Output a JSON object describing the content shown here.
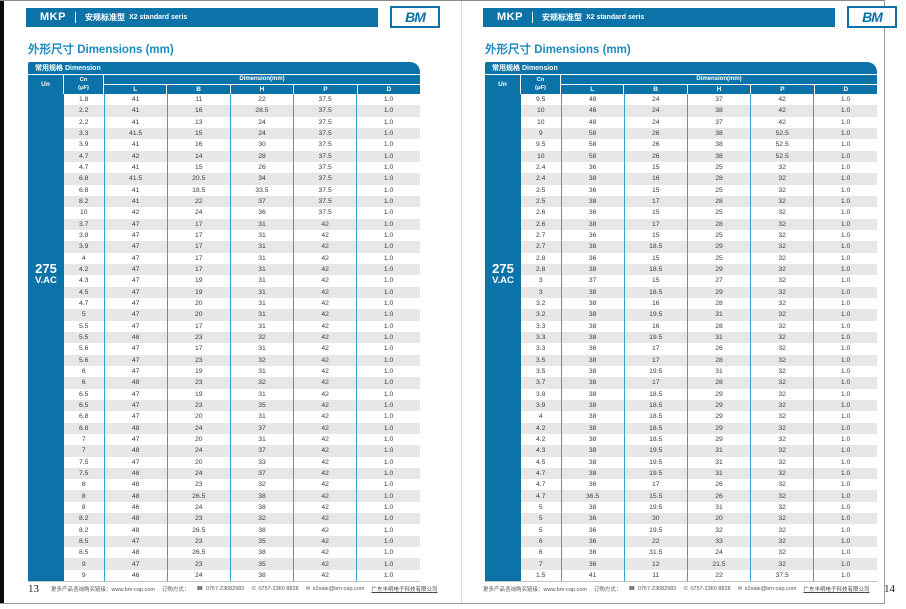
{
  "page": {
    "footer": {
      "promo": "更多产品咨询购买链接：www.bm-cap.com",
      "order_label": "订购方式：",
      "phone": "0757-23682982",
      "fax": "0757-2360 8828",
      "email": "x2sale@bm-cap.com",
      "company": "广东丰明电子科技有限公司"
    }
  },
  "colors": {
    "brand_blue": "#0C73A8",
    "grid_blue": "#33A3D4",
    "stripe_gray": "#E7E7E7",
    "title_blue": "#1B8AC0"
  },
  "panels": [
    {
      "page_number": "13",
      "logo_text": "BM",
      "header": {
        "series": "MKP",
        "subtitle_cn": "安规标准型",
        "subtitle_en": "X2 standard seris"
      },
      "title": "外形尺寸 Dimensions (mm)",
      "table": {
        "caption": "常用规格 Dimension",
        "col_un": "Un",
        "col_cn": "Cn",
        "col_cn_unit": "(μF)",
        "dim_group": "Dimension(mm)",
        "dim_cols": [
          "L",
          "B",
          "H",
          "P",
          "D"
        ],
        "voltage": {
          "value": "275",
          "unit": "V.AC"
        },
        "rows": [
          [
            "1.8",
            "41",
            "11",
            "22",
            "37.5",
            "1.0"
          ],
          [
            "2.2",
            "41",
            "16",
            "28.5",
            "37.5",
            "1.0"
          ],
          [
            "2.2",
            "41",
            "13",
            "24",
            "37.5",
            "1.0"
          ],
          [
            "3.3",
            "41.5",
            "15",
            "24",
            "37.5",
            "1.0"
          ],
          [
            "3.9",
            "41",
            "16",
            "30",
            "37.5",
            "1.0"
          ],
          [
            "4.7",
            "42",
            "14",
            "28",
            "37.5",
            "1.0"
          ],
          [
            "4.7",
            "41",
            "15",
            "26",
            "37.5",
            "1.0"
          ],
          [
            "6.8",
            "41.5",
            "20.5",
            "34",
            "37.5",
            "1.0"
          ],
          [
            "6.8",
            "41",
            "18.5",
            "33.5",
            "37.5",
            "1.0"
          ],
          [
            "8.2",
            "41",
            "22",
            "37",
            "37.5",
            "1.0"
          ],
          [
            "10",
            "42",
            "24",
            "36",
            "37.5",
            "1.0"
          ],
          [
            "3.7",
            "47",
            "17",
            "31",
            "42",
            "1.0"
          ],
          [
            "3.8",
            "47",
            "17",
            "31",
            "42",
            "1.0"
          ],
          [
            "3.9",
            "47",
            "17",
            "31",
            "42",
            "1.0"
          ],
          [
            "4",
            "47",
            "17",
            "31",
            "42",
            "1.0"
          ],
          [
            "4.2",
            "47",
            "17",
            "31",
            "42",
            "1.0"
          ],
          [
            "4.3",
            "47",
            "19",
            "31",
            "42",
            "1.0"
          ],
          [
            "4.5",
            "47",
            "19",
            "31",
            "42",
            "1.0"
          ],
          [
            "4.7",
            "47",
            "20",
            "31",
            "42",
            "1.0"
          ],
          [
            "5",
            "47",
            "20",
            "31",
            "42",
            "1.0"
          ],
          [
            "5.5",
            "47",
            "17",
            "31",
            "42",
            "1.0"
          ],
          [
            "5.5",
            "48",
            "23",
            "32",
            "42",
            "1.0"
          ],
          [
            "5.6",
            "47",
            "17",
            "31",
            "42",
            "1.0"
          ],
          [
            "5.6",
            "47",
            "23",
            "32",
            "42",
            "1.0"
          ],
          [
            "6",
            "47",
            "19",
            "31",
            "42",
            "1.0"
          ],
          [
            "6",
            "48",
            "23",
            "32",
            "42",
            "1.0"
          ],
          [
            "6.5",
            "47",
            "19",
            "31",
            "42",
            "1.0"
          ],
          [
            "6.5",
            "47",
            "23",
            "35",
            "42",
            "1.0"
          ],
          [
            "6.8",
            "47",
            "20",
            "31",
            "42",
            "1.0"
          ],
          [
            "6.8",
            "48",
            "24",
            "37",
            "42",
            "1.0"
          ],
          [
            "7",
            "47",
            "20",
            "31",
            "42",
            "1.0"
          ],
          [
            "7",
            "48",
            "24",
            "37",
            "42",
            "1.0"
          ],
          [
            "7.5",
            "47",
            "20",
            "33",
            "42",
            "1.0"
          ],
          [
            "7.5",
            "48",
            "24",
            "37",
            "42",
            "1.0"
          ],
          [
            "8",
            "48",
            "23",
            "32",
            "42",
            "1.0"
          ],
          [
            "8",
            "48",
            "26.5",
            "38",
            "42",
            "1.0"
          ],
          [
            "8",
            "46",
            "24",
            "38",
            "42",
            "1.0"
          ],
          [
            "8.2",
            "48",
            "23",
            "32",
            "42",
            "1.0"
          ],
          [
            "8.2",
            "48",
            "26.5",
            "38",
            "42",
            "1.0"
          ],
          [
            "8.5",
            "47",
            "23",
            "35",
            "42",
            "1.0"
          ],
          [
            "8.5",
            "48",
            "26.5",
            "38",
            "42",
            "1.0"
          ],
          [
            "9",
            "47",
            "23",
            "35",
            "42",
            "1.0"
          ],
          [
            "9",
            "46",
            "24",
            "38",
            "42",
            "1.0"
          ]
        ]
      }
    },
    {
      "page_number": "14",
      "logo_text": "BM",
      "header": {
        "series": "MKP",
        "subtitle_cn": "安规标准型",
        "subtitle_en": "X2 standard seris"
      },
      "title": "外形尺寸 Dimensions (mm)",
      "table": {
        "caption": "常用规格 Dimension",
        "col_un": "Un",
        "col_cn": "Cn",
        "col_cn_unit": "(μF)",
        "dim_group": "Dimension(mm)",
        "dim_cols": [
          "L",
          "B",
          "H",
          "P",
          "D"
        ],
        "voltage": {
          "value": "275",
          "unit": "V.AC"
        },
        "rows": [
          [
            "9.5",
            "48",
            "24",
            "37",
            "42",
            "1.0"
          ],
          [
            "10",
            "46",
            "24",
            "38",
            "42",
            "1.0"
          ],
          [
            "10",
            "48",
            "24",
            "37",
            "42",
            "1.0"
          ],
          [
            "9",
            "58",
            "26",
            "38",
            "52.5",
            "1.0"
          ],
          [
            "9.5",
            "58",
            "26",
            "38",
            "52.5",
            "1.0"
          ],
          [
            "10",
            "58",
            "26",
            "38",
            "52.5",
            "1.0"
          ],
          [
            "2.4",
            "36",
            "15",
            "25",
            "32",
            "1.0"
          ],
          [
            "2.4",
            "38",
            "16",
            "28",
            "32",
            "1.0"
          ],
          [
            "2.5",
            "36",
            "15",
            "25",
            "32",
            "1.0"
          ],
          [
            "2.5",
            "38",
            "17",
            "28",
            "32",
            "1.0"
          ],
          [
            "2.6",
            "36",
            "15",
            "25",
            "32",
            "1.0"
          ],
          [
            "2.6",
            "38",
            "17",
            "28",
            "32",
            "1.0"
          ],
          [
            "2.7",
            "36",
            "15",
            "25",
            "32",
            "1.0"
          ],
          [
            "2.7",
            "38",
            "18.5",
            "29",
            "32",
            "1.0"
          ],
          [
            "2.8",
            "36",
            "15",
            "25",
            "32",
            "1.0"
          ],
          [
            "2.8",
            "38",
            "18.5",
            "29",
            "32",
            "1.0"
          ],
          [
            "3",
            "37",
            "15",
            "27",
            "32",
            "1.0"
          ],
          [
            "3",
            "38",
            "18.5",
            "29",
            "32",
            "1.0"
          ],
          [
            "3.2",
            "38",
            "16",
            "28",
            "32",
            "1.0"
          ],
          [
            "3.2",
            "38",
            "19.5",
            "31",
            "32",
            "1.0"
          ],
          [
            "3.3",
            "38",
            "16",
            "28",
            "32",
            "1.0"
          ],
          [
            "3.3",
            "38",
            "19.5",
            "31",
            "32",
            "1.0"
          ],
          [
            "3.3",
            "36",
            "17",
            "26",
            "32",
            "1.0"
          ],
          [
            "3.5",
            "38",
            "17",
            "28",
            "32",
            "1.0"
          ],
          [
            "3.5",
            "38",
            "19.5",
            "31",
            "32",
            "1.0"
          ],
          [
            "3.7",
            "38",
            "17",
            "28",
            "32",
            "1.0"
          ],
          [
            "3.8",
            "38",
            "18.5",
            "29",
            "32",
            "1.0"
          ],
          [
            "3.9",
            "38",
            "18.5",
            "29",
            "32",
            "1.0"
          ],
          [
            "4",
            "38",
            "18.5",
            "29",
            "32",
            "1.0"
          ],
          [
            "4.2",
            "38",
            "18.5",
            "29",
            "32",
            "1.0"
          ],
          [
            "4.2",
            "38",
            "18.5",
            "29",
            "32",
            "1.0"
          ],
          [
            "4.3",
            "38",
            "19.5",
            "31",
            "32",
            "1.0"
          ],
          [
            "4.5",
            "38",
            "19.5",
            "31",
            "32",
            "1.0"
          ],
          [
            "4.7",
            "38",
            "19.5",
            "31",
            "32",
            "1.0"
          ],
          [
            "4.7",
            "36",
            "17",
            "26",
            "32",
            "1.0"
          ],
          [
            "4.7",
            "36.5",
            "15.5",
            "26",
            "32",
            "1.0"
          ],
          [
            "5",
            "38",
            "19.5",
            "31",
            "32",
            "1.0"
          ],
          [
            "5",
            "36",
            "30",
            "20",
            "32",
            "1.0"
          ],
          [
            "5",
            "36",
            "19.5",
            "32",
            "32",
            "1.0"
          ],
          [
            "6",
            "36",
            "22",
            "33",
            "32",
            "1.0"
          ],
          [
            "6",
            "36",
            "31.5",
            "24",
            "32",
            "1.0"
          ],
          [
            "7",
            "36",
            "12",
            "21.5",
            "32",
            "1.0"
          ],
          [
            "1.5",
            "41",
            "11",
            "22",
            "37.5",
            "1.0"
          ]
        ]
      }
    }
  ]
}
